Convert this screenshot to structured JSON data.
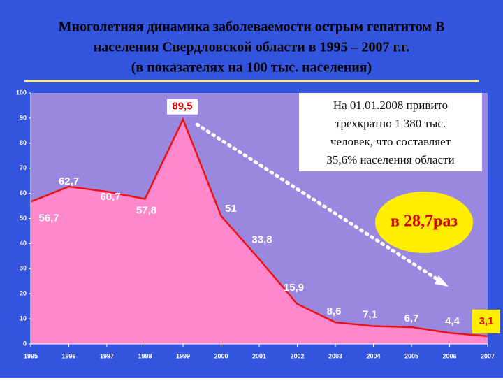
{
  "chart_data": {
    "type": "area",
    "title": [
      "Многолетняя динамика заболеваемости острым гепатитом В",
      "населения Свердловской области в 1995 – 2007 г.г.",
      "(в показателях на 100 тыс. населения)"
    ],
    "x": [
      1995,
      1996,
      1997,
      1998,
      1999,
      2000,
      2001,
      2002,
      2003,
      2004,
      2005,
      2006,
      2007
    ],
    "values": [
      56.7,
      62.7,
      60.7,
      57.8,
      89.5,
      51,
      33.8,
      15.9,
      8.6,
      7.1,
      6.7,
      4.4,
      3.1
    ],
    "value_labels": [
      "56,7",
      "62,7",
      "60,7",
      "57,8",
      "89,5",
      "51",
      "33,8",
      "15,9",
      "8,6",
      "7,1",
      "6,7",
      "4,4",
      "3,1"
    ],
    "color": "#ff88cc",
    "line_color": "#ee1111",
    "xlim": [
      1995,
      2007
    ],
    "xticks": [
      1995,
      1996,
      1997,
      1998,
      1999,
      2000,
      2001,
      2002,
      2003,
      2004,
      2005,
      2006,
      2007
    ],
    "ylim": [
      0,
      100
    ],
    "yticks": [
      0,
      10,
      20,
      30,
      40,
      50,
      60,
      70,
      80,
      90,
      100
    ],
    "note": [
      "На 01.01.2008 привито",
      "трехкратно 1 380 тыс.",
      "человек, что составляет",
      "35,6% населения области"
    ],
    "callout": "в 28,7раз"
  }
}
